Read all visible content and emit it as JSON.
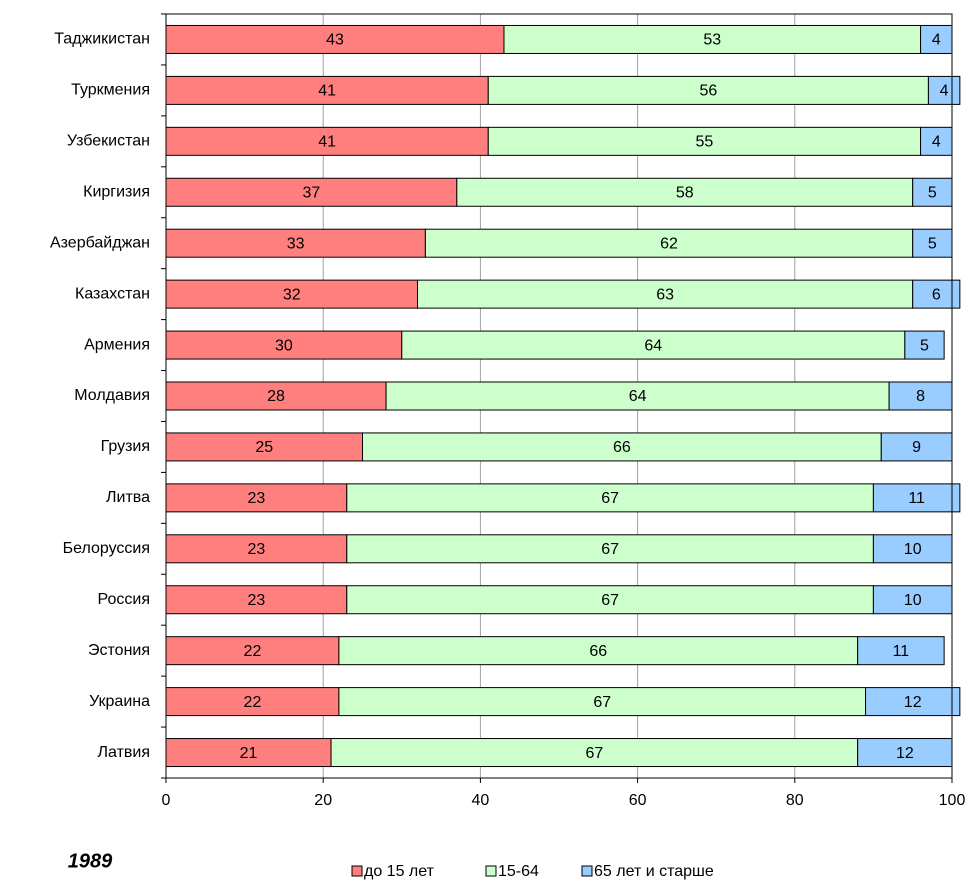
{
  "chart_data": {
    "type": "stacked-bar-horizontal",
    "annotation": "1989",
    "categories": [
      "Таджикистан",
      "Туркмения",
      "Узбекистан",
      "Киргизия",
      "Азербайджан",
      "Казахстан",
      "Армения",
      "Молдавия",
      "Грузия",
      "Литва",
      "Белоруссия",
      "Россия",
      "Эстония",
      "Украина",
      "Латвия"
    ],
    "series": [
      {
        "name": "до 15 лет",
        "color": "#ff7f7f",
        "values": [
          43,
          41,
          41,
          37,
          33,
          32,
          30,
          28,
          25,
          23,
          23,
          23,
          22,
          22,
          21
        ]
      },
      {
        "name": "15-64",
        "color": "#ccffcc",
        "values": [
          53,
          56,
          55,
          58,
          62,
          63,
          64,
          64,
          66,
          67,
          67,
          67,
          66,
          67,
          67
        ]
      },
      {
        "name": "65 лет и старше",
        "color": "#99ccff",
        "values": [
          4,
          4,
          4,
          5,
          5,
          6,
          5,
          8,
          9,
          11,
          10,
          10,
          11,
          12,
          12
        ]
      }
    ],
    "xlim": [
      0,
      100
    ],
    "xticks": [
      0,
      20,
      40,
      60,
      80,
      100
    ],
    "grid": true,
    "legend": "bottom"
  }
}
